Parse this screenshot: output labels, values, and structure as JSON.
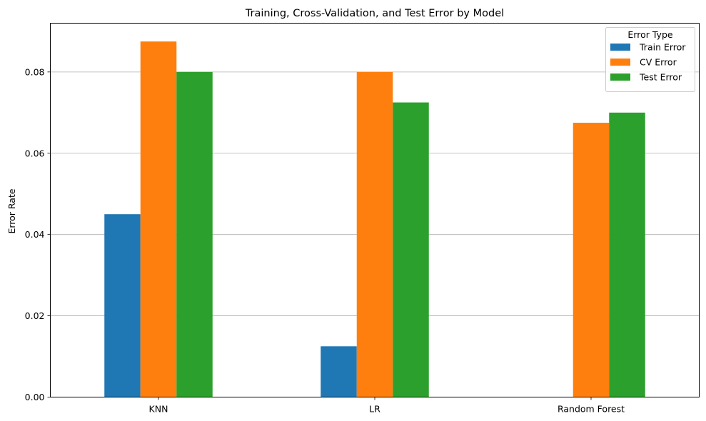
{
  "chart_data": {
    "type": "bar",
    "title": "Training, Cross-Validation, and Test Error by Model",
    "xlabel": "",
    "ylabel": "Error Rate",
    "categories": [
      "KNN",
      "LR",
      "Random Forest"
    ],
    "series": [
      {
        "name": "Train Error",
        "values": [
          0.045,
          0.0125,
          0.0
        ],
        "color": "#1f77b4"
      },
      {
        "name": "CV Error",
        "values": [
          0.0875,
          0.08,
          0.0675
        ],
        "color": "#ff7f0e"
      },
      {
        "name": "Test Error",
        "values": [
          0.08,
          0.0725,
          0.07
        ],
        "color": "#2ca02c"
      }
    ],
    "ylim": [
      0,
      0.092
    ],
    "yticks": [
      "0.00",
      "0.02",
      "0.04",
      "0.06",
      "0.08"
    ],
    "ytick_values": [
      0,
      0.02,
      0.04,
      0.06,
      0.08
    ],
    "grid": "y",
    "legend": {
      "title": "Error Type",
      "position": "top-right"
    }
  }
}
